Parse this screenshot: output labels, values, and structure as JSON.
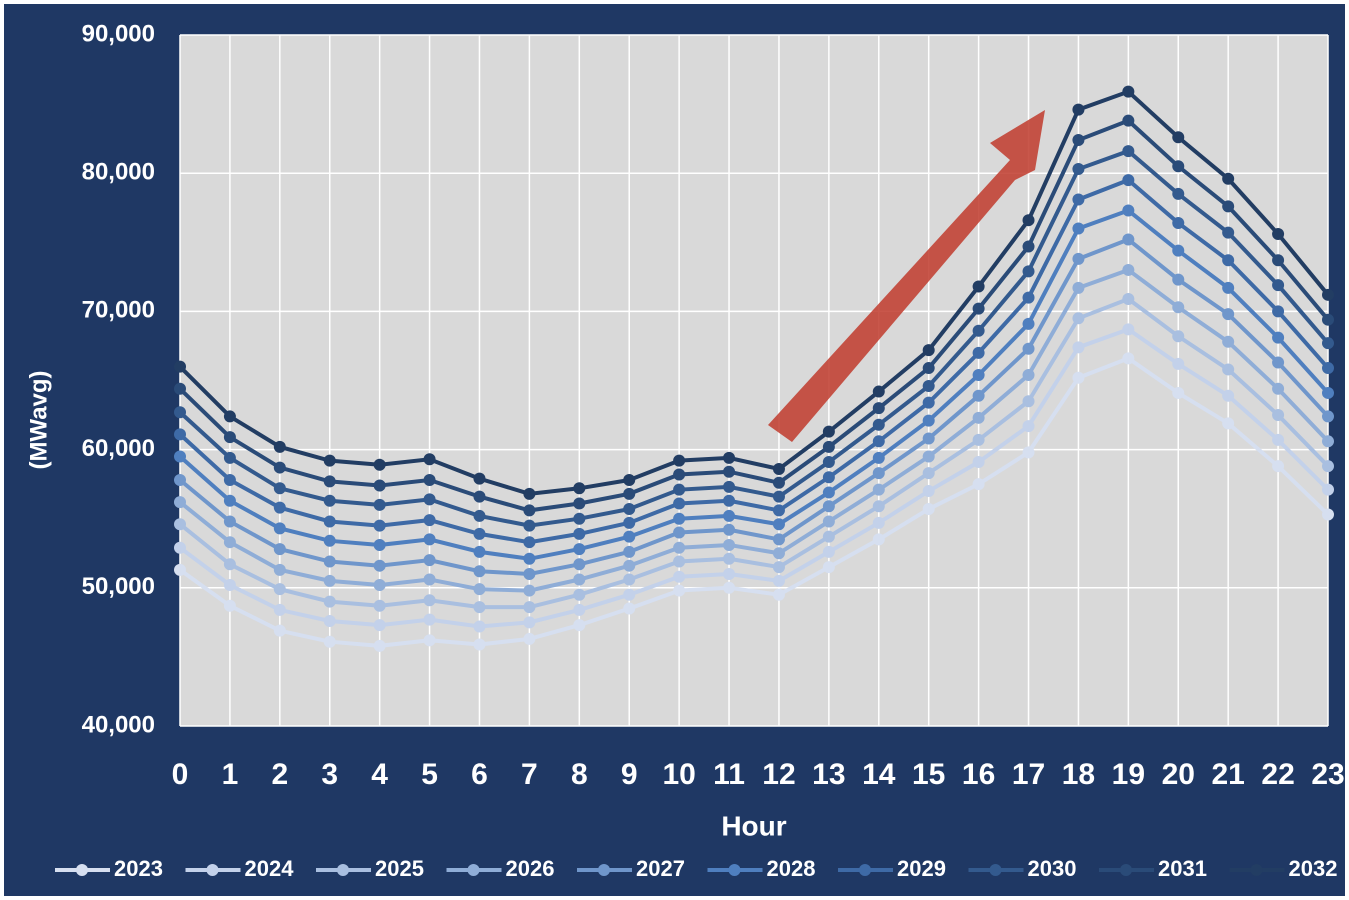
{
  "chart_data": {
    "type": "line",
    "x_label": "Hour",
    "y_label": "(MWavg)",
    "categories": [
      "0",
      "1",
      "2",
      "3",
      "4",
      "5",
      "6",
      "7",
      "8",
      "9",
      "10",
      "11",
      "12",
      "13",
      "14",
      "15",
      "16",
      "17",
      "18",
      "19",
      "20",
      "21",
      "22",
      "23"
    ],
    "ylim": [
      40000,
      90000
    ],
    "yticks": [
      {
        "value": 40000,
        "label": "40,000"
      },
      {
        "value": 50000,
        "label": "50,000"
      },
      {
        "value": 60000,
        "label": "60,000"
      },
      {
        "value": 70000,
        "label": "70,000"
      },
      {
        "value": 80000,
        "label": "80,000"
      },
      {
        "value": 90000,
        "label": "90,000"
      }
    ],
    "grid": true,
    "legend": "bottom",
    "series": [
      {
        "name": "2023",
        "color": "#d6dff0",
        "values": [
          51300,
          48700,
          46900,
          46100,
          45800,
          46200,
          45900,
          46300,
          47300,
          48500,
          49800,
          50000,
          49500,
          51500,
          53500,
          55700,
          57500,
          59800,
          65200,
          66600,
          64100,
          61900,
          58800,
          55300
        ]
      },
      {
        "name": "2024",
        "color": "#c3d1ea",
        "values": [
          52900,
          50200,
          48400,
          47600,
          47300,
          47700,
          47200,
          47500,
          48400,
          49500,
          50800,
          51000,
          50500,
          52600,
          54700,
          57000,
          59100,
          61700,
          67400,
          68700,
          66200,
          63900,
          60700,
          57100
        ]
      },
      {
        "name": "2025",
        "color": "#a9bfe0",
        "values": [
          54600,
          51700,
          49900,
          49000,
          48700,
          49100,
          48600,
          48600,
          49500,
          50600,
          51900,
          52100,
          51500,
          53700,
          55900,
          58300,
          60700,
          63500,
          69500,
          70900,
          68200,
          65800,
          62500,
          58800
        ]
      },
      {
        "name": "2026",
        "color": "#8fadd7",
        "values": [
          56200,
          53300,
          51300,
          50500,
          50200,
          50600,
          49900,
          49800,
          50600,
          51600,
          52900,
          53100,
          52500,
          54800,
          57100,
          59500,
          62300,
          65400,
          71700,
          73000,
          70300,
          67800,
          64400,
          60600
        ]
      },
      {
        "name": "2027",
        "color": "#6f96cb",
        "values": [
          57800,
          54800,
          52800,
          51900,
          51600,
          52000,
          51200,
          51000,
          51700,
          52600,
          54000,
          54200,
          53500,
          55900,
          58300,
          60800,
          63900,
          67300,
          73800,
          75200,
          72300,
          69800,
          66300,
          62400
        ]
      },
      {
        "name": "2028",
        "color": "#4f7fbf",
        "values": [
          59500,
          56300,
          54300,
          53400,
          53100,
          53500,
          52600,
          52100,
          52800,
          53700,
          55000,
          55200,
          54600,
          56900,
          59400,
          62100,
          65400,
          69100,
          76000,
          77300,
          74400,
          71700,
          68100,
          64100
        ]
      },
      {
        "name": "2029",
        "color": "#3e6aa6",
        "values": [
          61100,
          57800,
          55800,
          54800,
          54500,
          54900,
          53900,
          53300,
          53900,
          54700,
          56100,
          56300,
          55600,
          58000,
          60600,
          63400,
          67000,
          71000,
          78100,
          79500,
          76400,
          73700,
          70000,
          65900
        ]
      },
      {
        "name": "2030",
        "color": "#335a8e",
        "values": [
          62700,
          59400,
          57200,
          56300,
          56000,
          56400,
          55200,
          54500,
          55000,
          55700,
          57100,
          57300,
          56600,
          59100,
          61800,
          64600,
          68600,
          72900,
          80300,
          81600,
          78500,
          75700,
          71900,
          67700
        ]
      },
      {
        "name": "2031",
        "color": "#2a4b78",
        "values": [
          64400,
          60900,
          58700,
          57700,
          57400,
          57800,
          56600,
          55600,
          56100,
          56800,
          58200,
          58400,
          57600,
          60200,
          63000,
          65900,
          70200,
          74700,
          82400,
          83800,
          80500,
          77600,
          73700,
          69400
        ]
      },
      {
        "name": "2032",
        "color": "#223d63",
        "values": [
          66000,
          62400,
          60200,
          59200,
          58900,
          59300,
          57900,
          56800,
          57200,
          57800,
          59200,
          59400,
          58600,
          61300,
          64200,
          67200,
          71800,
          76600,
          84600,
          85900,
          82600,
          79600,
          75600,
          71200
        ]
      }
    ]
  }
}
